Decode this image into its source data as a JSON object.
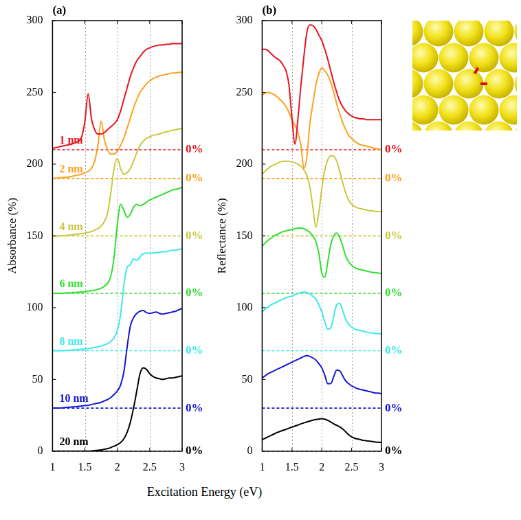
{
  "xlabel": "Excitation Energy (eV)",
  "chart_data": [
    {
      "type": "line",
      "title": "(a)",
      "ylabel": "Absorbance (%)",
      "x": [
        1,
        1.05,
        1.1,
        1.15,
        1.2,
        1.25,
        1.3,
        1.35,
        1.4,
        1.45,
        1.5,
        1.55,
        1.6,
        1.65,
        1.7,
        1.75,
        1.8,
        1.85,
        1.9,
        1.95,
        2,
        2.05,
        2.1,
        2.15,
        2.2,
        2.25,
        2.3,
        2.35,
        2.4,
        2.45,
        2.5,
        2.55,
        2.6,
        2.65,
        2.7,
        2.75,
        2.8,
        2.85,
        2.9,
        2.95,
        3
      ],
      "xlim": [
        1,
        3
      ],
      "xticks": [
        1,
        1.5,
        2,
        2.5,
        3
      ],
      "ylim": [
        0,
        300
      ],
      "yticks": [
        0,
        50,
        100,
        150,
        200,
        250,
        300
      ],
      "grid": "x",
      "legend": "inline",
      "series": [
        {
          "name": "1 nm",
          "color": "#e6141e",
          "zero_line": {
            "value": 210,
            "label": "0%"
          },
          "values": [
            211,
            211.5,
            212,
            212.5,
            213,
            213.5,
            214,
            215,
            216,
            219,
            230,
            249,
            232,
            224,
            221,
            221,
            222,
            224,
            226,
            228,
            231,
            237,
            245,
            253,
            261,
            267,
            272,
            275,
            278,
            280,
            281,
            282,
            282.5,
            283,
            283,
            283.5,
            283.5,
            284,
            284,
            284,
            284
          ]
        },
        {
          "name": "2 nm",
          "color": "#ffa01e",
          "zero_line": {
            "value": 190,
            "label": "0%"
          },
          "values": [
            190,
            190.2,
            190.4,
            190.6,
            190.8,
            191,
            191.5,
            192,
            192.5,
            193,
            194,
            195,
            197,
            202,
            213,
            230,
            217,
            210,
            207,
            207,
            209,
            213,
            218,
            225,
            232,
            239,
            245,
            250,
            253,
            256,
            258,
            259.5,
            260.5,
            261.5,
            262,
            262.5,
            263,
            263.5,
            263.5,
            264,
            264
          ]
        },
        {
          "name": "4 nm",
          "color": "#c8c83c",
          "zero_line": {
            "value": 150,
            "label": "0%"
          },
          "values": [
            150,
            150,
            150,
            150.2,
            150.3,
            150.5,
            150.7,
            151,
            151.3,
            151.6,
            152,
            152.5,
            153,
            154,
            155,
            157,
            160,
            166,
            180,
            197,
            204,
            197,
            193,
            194,
            197,
            202,
            208,
            213,
            216,
            218,
            219,
            220,
            220.5,
            221,
            222,
            222.5,
            223,
            223.5,
            224,
            224.5,
            225
          ]
        },
        {
          "name": "6 nm",
          "color": "#2fe02f",
          "zero_line": {
            "value": 110,
            "label": "0%"
          },
          "values": [
            110,
            110,
            110,
            110,
            110.2,
            110.3,
            110.5,
            110.6,
            110.8,
            111,
            111.2,
            111.5,
            111.8,
            112.2,
            112.8,
            113.5,
            115,
            117,
            122,
            135,
            158,
            172,
            168,
            163,
            165,
            170,
            172,
            171,
            172,
            173.5,
            175,
            176,
            177,
            178,
            179,
            180,
            181,
            182,
            182.5,
            183,
            184
          ]
        },
        {
          "name": "8 nm",
          "color": "#3ee8e8",
          "zero_line": {
            "value": 70,
            "label": "0%"
          },
          "values": [
            70,
            70,
            70,
            70,
            70.2,
            70.3,
            70.5,
            70.6,
            70.8,
            71,
            71.2,
            71.5,
            71.8,
            72.2,
            72.7,
            73.3,
            74,
            75,
            76.5,
            79,
            84,
            95,
            115,
            128,
            130,
            134,
            133,
            135.5,
            137.5,
            138,
            138,
            138,
            138.5,
            138.5,
            139,
            139,
            139.5,
            140,
            140,
            140.5,
            141
          ]
        },
        {
          "name": "10 nm",
          "color": "#1414d2",
          "zero_line": {
            "value": 30,
            "label": "0%"
          },
          "values": [
            30,
            30,
            30,
            30.2,
            30.4,
            30.6,
            30.8,
            31,
            31.2,
            31.5,
            31.8,
            32,
            32.5,
            33,
            33.5,
            34,
            35,
            36,
            37.5,
            39.5,
            42,
            46,
            55,
            72,
            87,
            93,
            96,
            97.5,
            98,
            96.5,
            96,
            96.5,
            97,
            96,
            95.5,
            96,
            96.5,
            97,
            97.5,
            98.5,
            99.5
          ]
        },
        {
          "name": "20 nm",
          "color": "#000000",
          "zero_line": {
            "value": 0,
            "label": "0%"
          },
          "values": [
            0,
            0,
            0,
            0,
            0,
            0,
            0,
            0,
            0,
            0,
            0,
            0,
            0.2,
            0.4,
            0.6,
            0.9,
            1.3,
            1.8,
            2.5,
            3.5,
            4.5,
            6,
            8.5,
            13,
            20,
            30,
            42,
            54,
            58,
            57,
            54,
            52,
            51,
            50.5,
            50,
            50.5,
            51,
            51,
            51.5,
            52,
            52.5
          ]
        }
      ]
    },
    {
      "type": "line",
      "title": "(b)",
      "ylabel": "Reflectance (%)",
      "x": [
        1,
        1.05,
        1.1,
        1.15,
        1.2,
        1.25,
        1.3,
        1.35,
        1.4,
        1.45,
        1.5,
        1.55,
        1.6,
        1.65,
        1.7,
        1.75,
        1.8,
        1.85,
        1.9,
        1.95,
        2,
        2.05,
        2.1,
        2.15,
        2.2,
        2.25,
        2.3,
        2.35,
        2.4,
        2.45,
        2.5,
        2.55,
        2.6,
        2.65,
        2.7,
        2.75,
        2.8,
        2.85,
        2.9,
        2.95,
        3
      ],
      "xlim": [
        1,
        3
      ],
      "xticks": [
        1,
        1.5,
        2,
        2.5,
        3
      ],
      "ylim": [
        0,
        300
      ],
      "yticks": [
        0,
        50,
        100,
        150,
        200,
        250,
        300
      ],
      "grid": "x",
      "series": [
        {
          "name": "1 nm",
          "color": "#e6141e",
          "zero_line": {
            "value": 210,
            "label": "0%"
          },
          "values": [
            280,
            280,
            279,
            277,
            275,
            273.5,
            272,
            269,
            265,
            255,
            232,
            214,
            232,
            255,
            275,
            292,
            297,
            296.5,
            294,
            290,
            286,
            280,
            273,
            265,
            257,
            250,
            244,
            240,
            237,
            235,
            233.5,
            232.5,
            232,
            231.5,
            231.5,
            231,
            231,
            231,
            231,
            231,
            231
          ]
        },
        {
          "name": "2 nm",
          "color": "#ffa01e",
          "zero_line": {
            "value": 190,
            "label": "0%"
          },
          "values": [
            248,
            249.5,
            250,
            249.5,
            248.5,
            247,
            245,
            243,
            240,
            236,
            231,
            227,
            222,
            213,
            197,
            205,
            228,
            242,
            255,
            263,
            267,
            265,
            262,
            257,
            250,
            242,
            235,
            229,
            224,
            220,
            218,
            216,
            214.5,
            213.5,
            213,
            212.5,
            212,
            211.5,
            211,
            210.5,
            210
          ]
        },
        {
          "name": "4 nm",
          "color": "#c8c83c",
          "zero_line": {
            "value": 150,
            "label": "0%"
          },
          "values": [
            193,
            195,
            197,
            198.5,
            199.5,
            200.5,
            201.5,
            202,
            202,
            202,
            201.5,
            201,
            200,
            198.5,
            196,
            192,
            184,
            170,
            156,
            166,
            183,
            196,
            203,
            206,
            205.5,
            202,
            195,
            187,
            180,
            175,
            172,
            170.5,
            169.5,
            169,
            168.5,
            168,
            167.5,
            167.5,
            167,
            167,
            167
          ]
        },
        {
          "name": "6 nm",
          "color": "#2fe02f",
          "zero_line": {
            "value": 110,
            "label": "0%"
          },
          "values": [
            143,
            145,
            147,
            148.5,
            150,
            151,
            152,
            153,
            153.5,
            154,
            154.5,
            155,
            155.5,
            155.5,
            155,
            154,
            152.5,
            150,
            146,
            138,
            124,
            121,
            132,
            144,
            150,
            152,
            149,
            143,
            136,
            132,
            129.5,
            128,
            127,
            126.5,
            126,
            125.5,
            125,
            124.5,
            124.5,
            124,
            124
          ]
        },
        {
          "name": "8 nm",
          "color": "#3ee8e8",
          "zero_line": {
            "value": 70,
            "label": "0%"
          },
          "values": [
            97,
            99,
            100.5,
            102,
            103,
            104,
            105,
            106,
            107,
            107.5,
            108,
            109,
            110,
            110.5,
            111,
            110.5,
            109.5,
            108,
            106,
            102,
            97,
            90,
            85,
            86,
            94,
            102,
            103,
            98,
            92,
            88.5,
            86.5,
            85,
            84.5,
            84,
            83.5,
            83,
            82.5,
            82.5,
            82,
            82,
            81.5
          ]
        },
        {
          "name": "10 nm",
          "color": "#1414d2",
          "zero_line": {
            "value": 30,
            "label": "0%"
          },
          "values": [
            51,
            52.5,
            54,
            55,
            56,
            57,
            58,
            59,
            60,
            61,
            62,
            63,
            64,
            65,
            66,
            66.5,
            66,
            65,
            63.5,
            61,
            58,
            53,
            47,
            47,
            52,
            56.5,
            56,
            52.5,
            49,
            47,
            45.5,
            44.5,
            43.5,
            43,
            42.5,
            42,
            41.5,
            41,
            40.5,
            40.5,
            40
          ]
        },
        {
          "name": "20 nm",
          "color": "#000000",
          "zero_line": {
            "value": 0,
            "label": "0%"
          },
          "values": [
            8,
            9,
            10,
            11,
            12,
            13,
            13.8,
            14.5,
            15.2,
            16,
            16.8,
            17.5,
            18.2,
            19,
            19.7,
            20.4,
            21,
            21.6,
            22,
            22.4,
            22.6,
            22.3,
            21.5,
            20.3,
            19,
            18,
            17,
            15.5,
            13.5,
            11.5,
            10,
            9,
            8.5,
            8,
            7.5,
            7.2,
            7,
            6.7,
            6.4,
            6.2,
            6
          ]
        }
      ]
    }
  ]
}
